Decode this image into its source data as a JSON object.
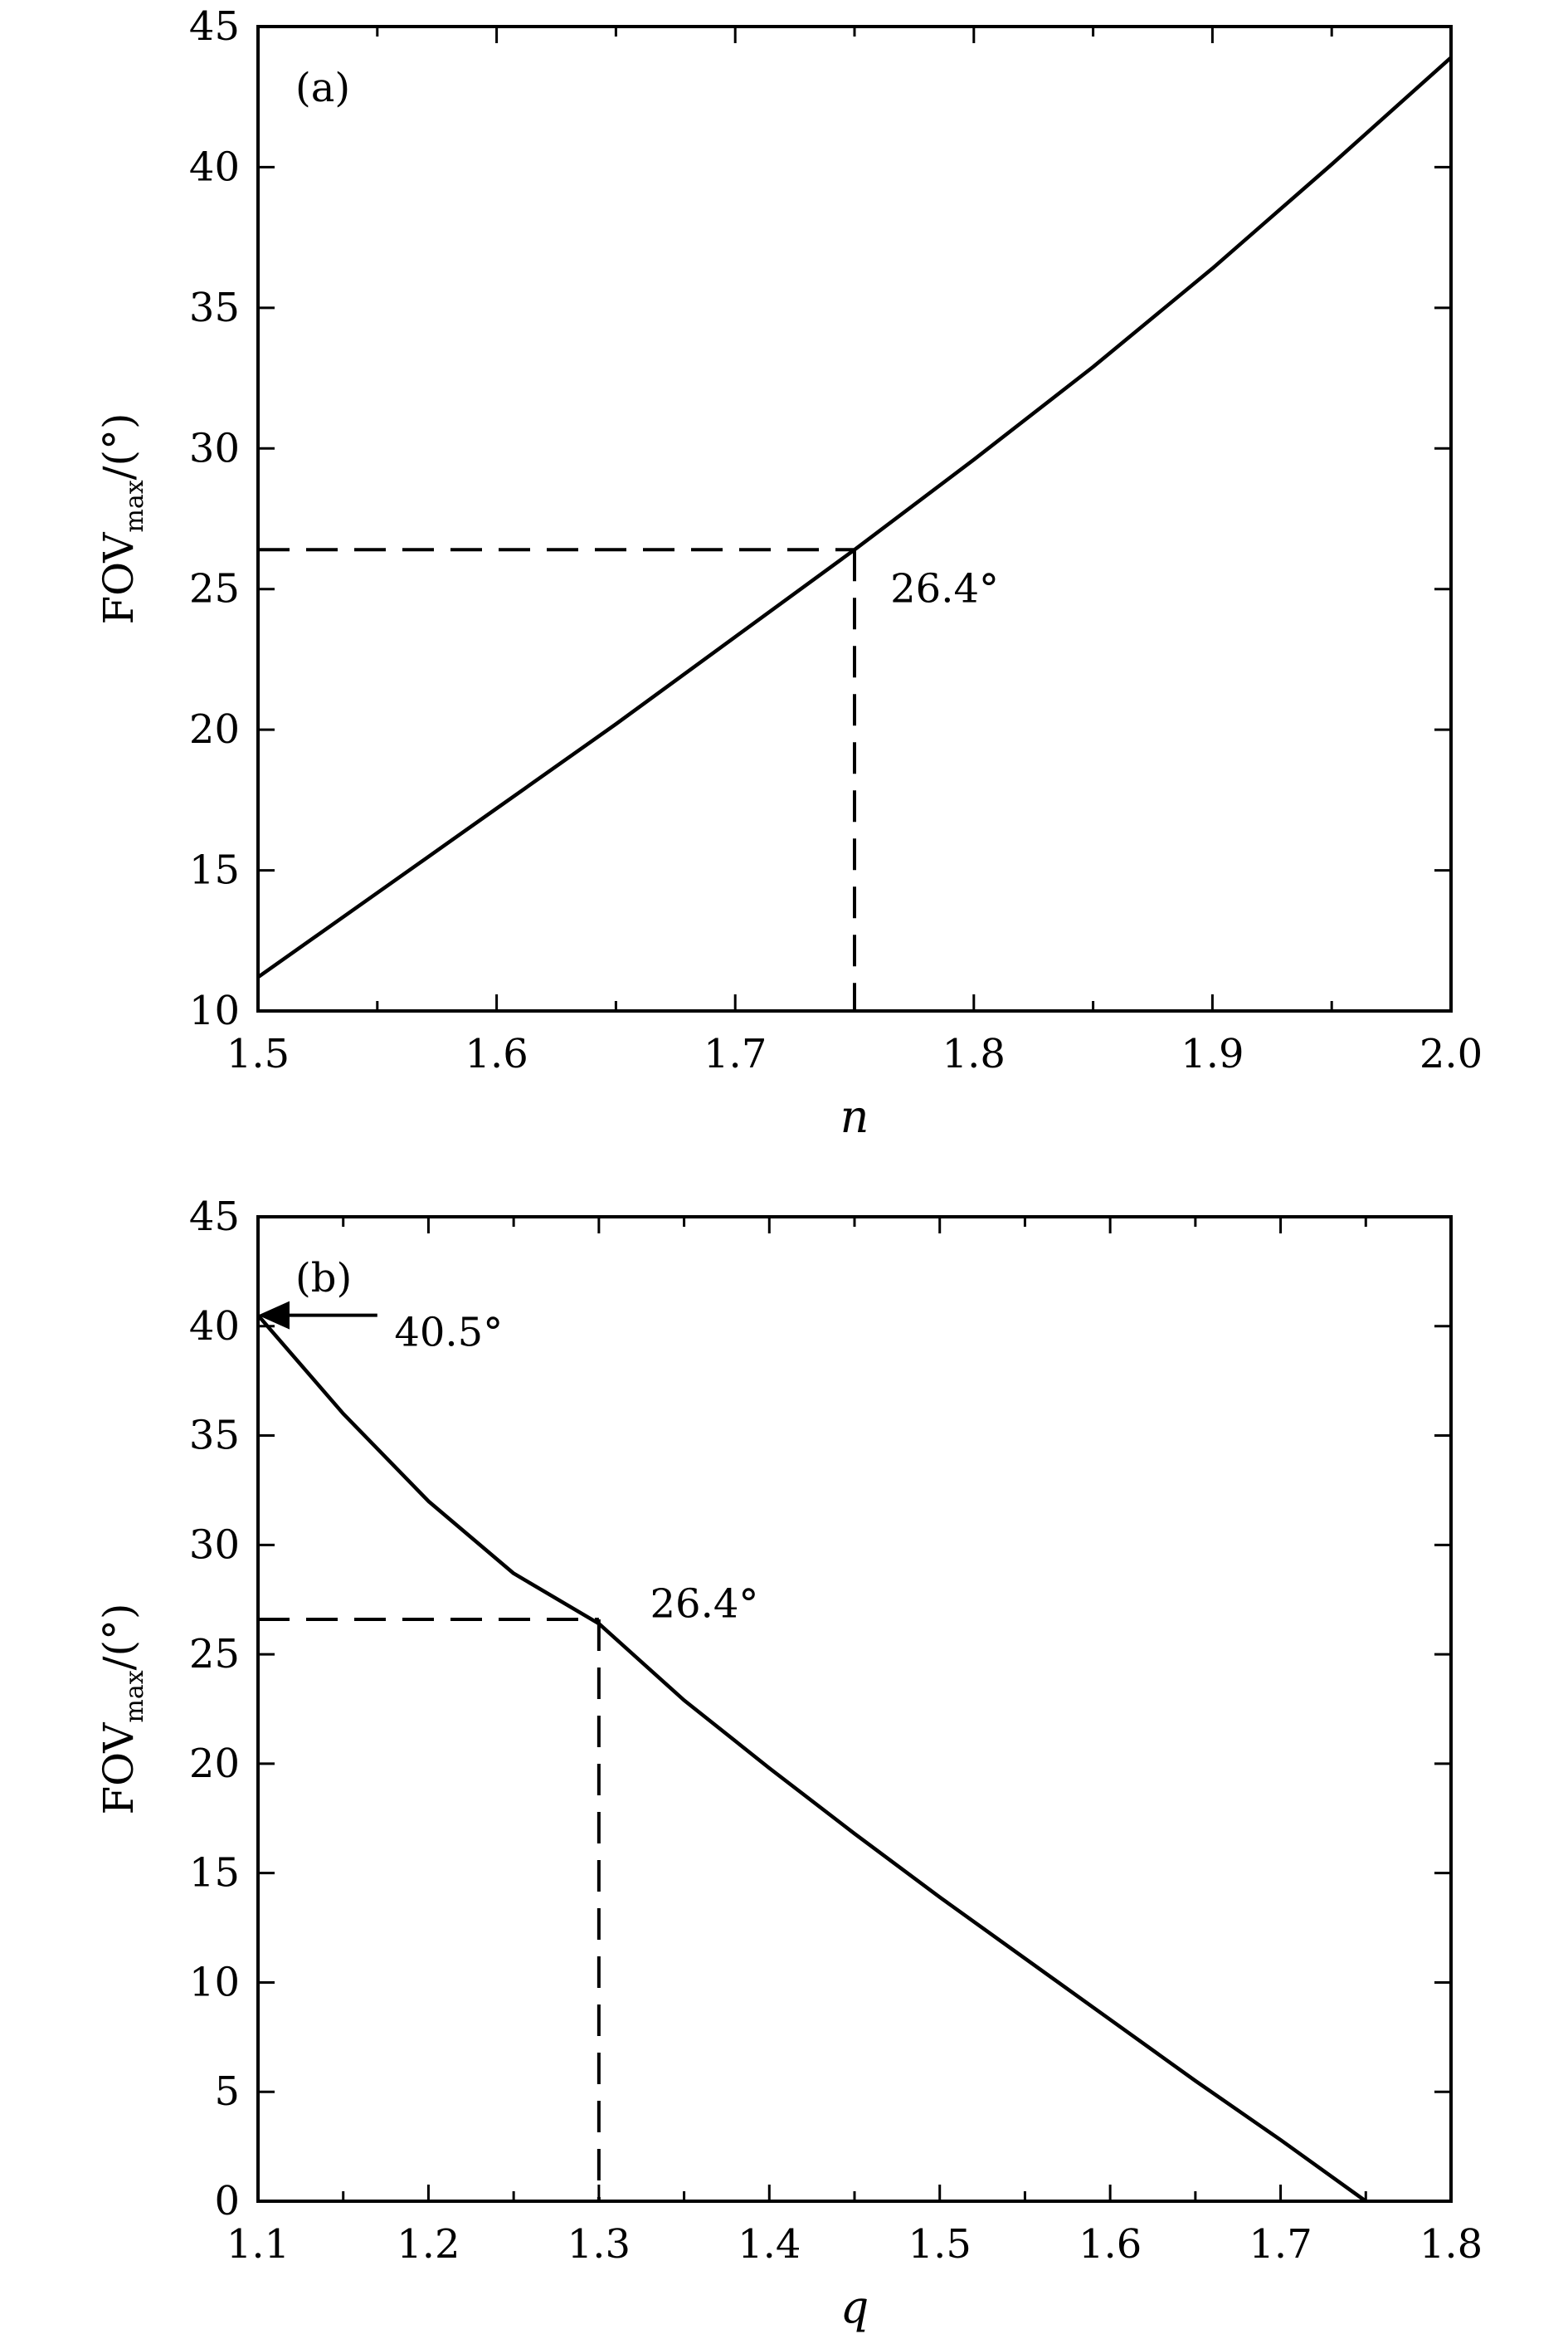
{
  "chart_data": [
    {
      "type": "line",
      "panel_label": "(a)",
      "xlabel": "n",
      "ylabel": "FOV",
      "ylabel_sub": "max",
      "ylabel_unit": "/(°)",
      "xlim": [
        1.5,
        2.0
      ],
      "ylim": [
        10,
        45
      ],
      "xticks": [
        "1.5",
        "1.6",
        "1.7",
        "1.8",
        "1.9",
        "2.0"
      ],
      "yticks": [
        "10",
        "15",
        "20",
        "25",
        "30",
        "35",
        "40",
        "45"
      ],
      "grid": false,
      "series": [
        {
          "x": [
            1.5,
            1.55,
            1.6,
            1.65,
            1.7,
            1.75,
            1.8,
            1.85,
            1.9,
            1.95,
            2.0
          ],
          "y": [
            11.2,
            14.2,
            17.2,
            20.2,
            23.3,
            26.4,
            29.6,
            32.9,
            36.4,
            40.1,
            43.9
          ]
        }
      ],
      "guide": {
        "x": 1.75,
        "y": 26.4
      },
      "annotations": [
        {
          "text": "26.4°",
          "x": 1.765,
          "y": 25.0
        }
      ]
    },
    {
      "type": "line",
      "panel_label": "(b)",
      "xlabel": "q",
      "ylabel": "FOV",
      "ylabel_sub": "max",
      "ylabel_unit": "/(°)",
      "xlim": [
        1.1,
        1.8
      ],
      "ylim": [
        0,
        45
      ],
      "xticks": [
        "1.1",
        "1.2",
        "1.3",
        "1.4",
        "1.5",
        "1.6",
        "1.7",
        "1.8"
      ],
      "yticks": [
        "0",
        "5",
        "10",
        "15",
        "20",
        "25",
        "30",
        "35",
        "40",
        "45"
      ],
      "grid": false,
      "series": [
        {
          "x": [
            1.1,
            1.15,
            1.2,
            1.25,
            1.3,
            1.35,
            1.4,
            1.45,
            1.5,
            1.55,
            1.6,
            1.65,
            1.7,
            1.75
          ],
          "y": [
            40.5,
            36.0,
            32.0,
            28.7,
            26.4,
            22.9,
            19.8,
            16.8,
            13.9,
            11.1,
            8.3,
            5.5,
            2.8,
            0.0
          ]
        }
      ],
      "guide": {
        "x": 1.3,
        "y": 26.6
      },
      "annotations": [
        {
          "text": "26.4°",
          "x": 1.33,
          "y": 27.3
        },
        {
          "text": "40.5°",
          "x": 1.18,
          "y": 39.7
        }
      ],
      "arrow": {
        "from": [
          1.17,
          40.5
        ],
        "to": [
          1.1,
          40.5
        ]
      }
    }
  ]
}
